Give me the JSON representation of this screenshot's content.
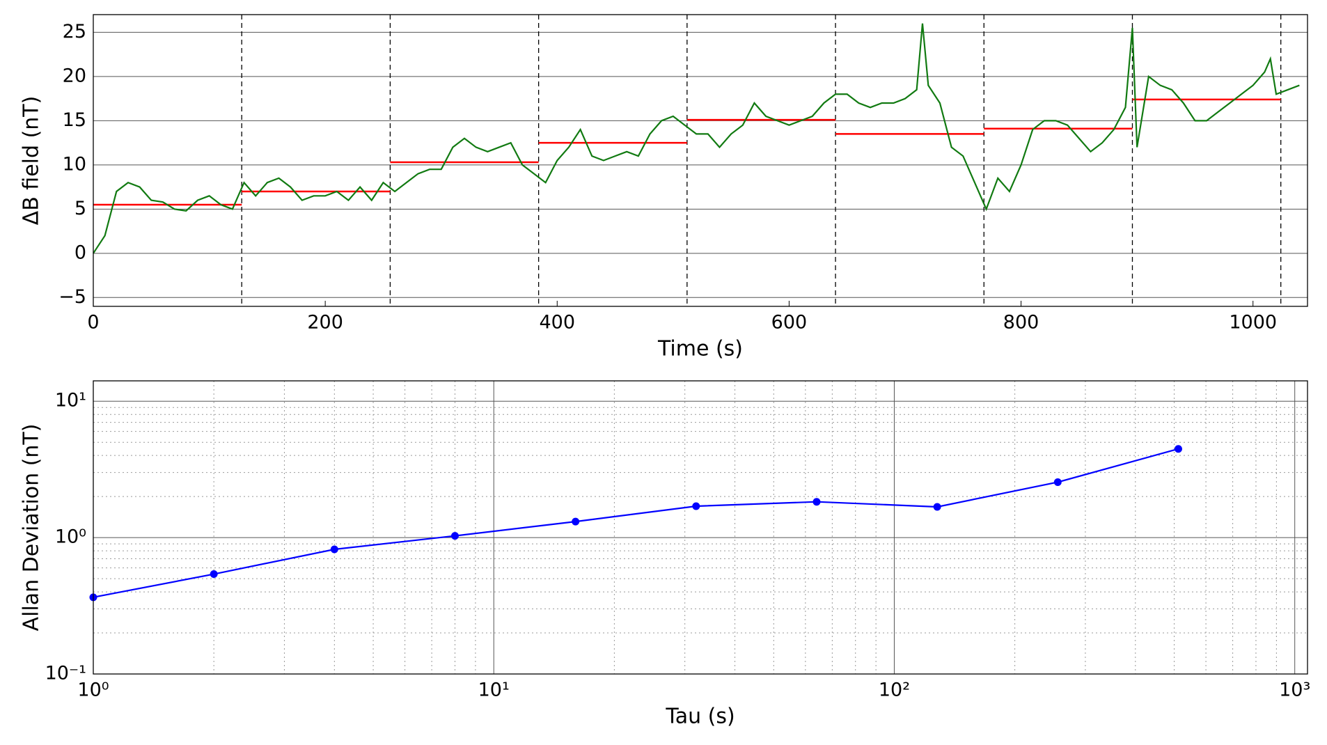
{
  "chart_data": [
    {
      "type": "line",
      "xlabel": "Time (s)",
      "ylabel": "ΔB field (nT)",
      "xlim": [
        0,
        1047
      ],
      "ylim": [
        -6,
        27
      ],
      "xticks": [
        0,
        200,
        400,
        600,
        800,
        1000
      ],
      "yticks": [
        {
          "value": -5,
          "label": "−5"
        },
        0,
        5,
        10,
        15,
        20,
        25
      ],
      "grid": "y",
      "x": [
        0,
        10,
        20,
        30,
        40,
        50,
        60,
        70,
        80,
        90,
        100,
        110,
        120,
        130,
        140,
        150,
        160,
        170,
        180,
        190,
        200,
        210,
        220,
        230,
        240,
        250,
        260,
        270,
        280,
        290,
        300,
        310,
        320,
        330,
        340,
        350,
        360,
        370,
        380,
        390,
        400,
        410,
        420,
        430,
        440,
        450,
        460,
        470,
        480,
        490,
        500,
        510,
        520,
        530,
        540,
        550,
        560,
        570,
        580,
        590,
        600,
        610,
        620,
        630,
        640,
        650,
        660,
        670,
        680,
        690,
        700,
        710,
        715,
        720,
        730,
        740,
        750,
        760,
        770,
        780,
        790,
        800,
        810,
        820,
        830,
        840,
        850,
        860,
        870,
        880,
        890,
        896,
        900,
        910,
        920,
        930,
        940,
        950,
        960,
        970,
        980,
        990,
        1000,
        1010,
        1015,
        1020,
        1030,
        1040
      ],
      "series": [
        {
          "color": "#117a11",
          "values": [
            0,
            2,
            7,
            8,
            7.5,
            6,
            5.8,
            5,
            4.8,
            6,
            6.5,
            5.5,
            5,
            8,
            6.5,
            8,
            8.5,
            7.5,
            6,
            6.5,
            6.5,
            7,
            6,
            7.5,
            6,
            8,
            7,
            8,
            9,
            9.5,
            9.5,
            12,
            13,
            12,
            11.5,
            12,
            12.5,
            10,
            9,
            8,
            10.5,
            12,
            14,
            11,
            10.5,
            11,
            11.5,
            11,
            13.5,
            15,
            15.5,
            14.5,
            13.5,
            13.5,
            12,
            13.5,
            14.5,
            17,
            15.5,
            15,
            14.5,
            15,
            15.5,
            17,
            18,
            18,
            17,
            16.5,
            17,
            17,
            17.5,
            18.5,
            26,
            19,
            17,
            12,
            11,
            8,
            5,
            8.5,
            7,
            10,
            14,
            15,
            15,
            14.5,
            13,
            11.5,
            12.5,
            14,
            16.5,
            25.5,
            12,
            20,
            19,
            18.5,
            17,
            15,
            15,
            16,
            17,
            18,
            19,
            20.5,
            22,
            18,
            18.5,
            19
          ]
        }
      ],
      "steps": {
        "color": "#ff0000",
        "edges": [
          0,
          128,
          256,
          384,
          512,
          640,
          768,
          896,
          1024
        ],
        "values": [
          5.5,
          7.0,
          10.3,
          12.5,
          15.1,
          13.5,
          14.1,
          17.4
        ]
      },
      "vlines": [
        128,
        256,
        384,
        512,
        640,
        768,
        896,
        1024
      ]
    },
    {
      "type": "line",
      "xlabel": "Tau (s)",
      "ylabel": "Allan Deviation (nT)",
      "xscale": "log",
      "yscale": "log",
      "xlim": [
        1,
        1076
      ],
      "ylim": [
        0.1,
        14.1
      ],
      "xticks": [
        {
          "value": 1,
          "label": "10⁰"
        },
        {
          "value": 10,
          "label": "10¹"
        },
        {
          "value": 100,
          "label": "10²"
        },
        {
          "value": 1000,
          "label": "10³"
        }
      ],
      "yticks": [
        {
          "value": 0.1,
          "label": "10⁻¹"
        },
        {
          "value": 1,
          "label": "10⁰"
        },
        {
          "value": 10,
          "label": "10¹"
        }
      ],
      "grid": "both",
      "x": [
        1,
        2,
        4,
        8,
        16,
        32,
        64,
        128,
        256,
        512
      ],
      "series": [
        {
          "color": "#0000ff",
          "marker": "o",
          "values": [
            0.365,
            0.54,
            0.82,
            1.03,
            1.31,
            1.7,
            1.83,
            1.68,
            2.55,
            4.47
          ]
        }
      ]
    }
  ]
}
